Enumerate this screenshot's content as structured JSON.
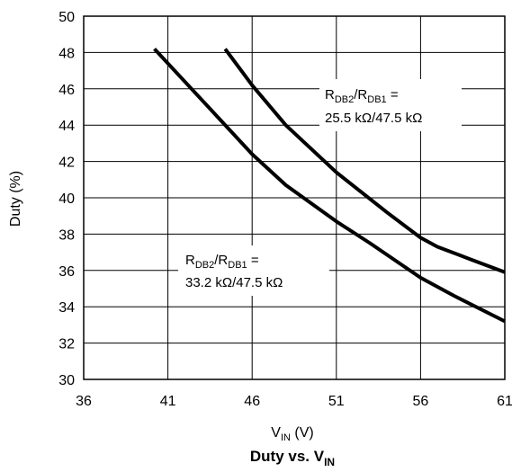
{
  "chart_data": {
    "type": "line",
    "title": {
      "main": "Duty vs. V",
      "sub": "IN"
    },
    "xlabel": {
      "main": "V",
      "sub": "IN",
      "unit": " (V)"
    },
    "ylabel": "Duty (%)",
    "xlim": [
      36,
      61
    ],
    "ylim": [
      30,
      50
    ],
    "x_ticks": [
      36,
      41,
      46,
      51,
      56,
      61
    ],
    "y_ticks": [
      30,
      32,
      34,
      36,
      38,
      40,
      42,
      44,
      46,
      48,
      50
    ],
    "grid": true,
    "series": [
      {
        "label": {
          "line1": {
            "a": "R",
            "a_sub": "DB2",
            "b": "/R",
            "b_sub": "DB1",
            "c": " ="
          },
          "line2": "25.5 kΩ/47.5 kΩ"
        },
        "x": [
          44.4,
          46,
          48,
          51,
          54,
          56,
          57,
          59,
          61
        ],
        "y": [
          48.2,
          46.2,
          44.0,
          41.4,
          39.2,
          37.8,
          37.3,
          36.6,
          35.9
        ]
      },
      {
        "label": {
          "line1": {
            "a": "R",
            "a_sub": "DB2",
            "b": "/R",
            "b_sub": "DB1",
            "c": " ="
          },
          "line2": "33.2 kΩ/47.5 kΩ"
        },
        "x": [
          40.2,
          42,
          44,
          46,
          48,
          51,
          53,
          56,
          58,
          61
        ],
        "y": [
          48.2,
          46.4,
          44.4,
          42.4,
          40.7,
          38.7,
          37.5,
          35.6,
          34.6,
          33.2
        ]
      }
    ]
  }
}
